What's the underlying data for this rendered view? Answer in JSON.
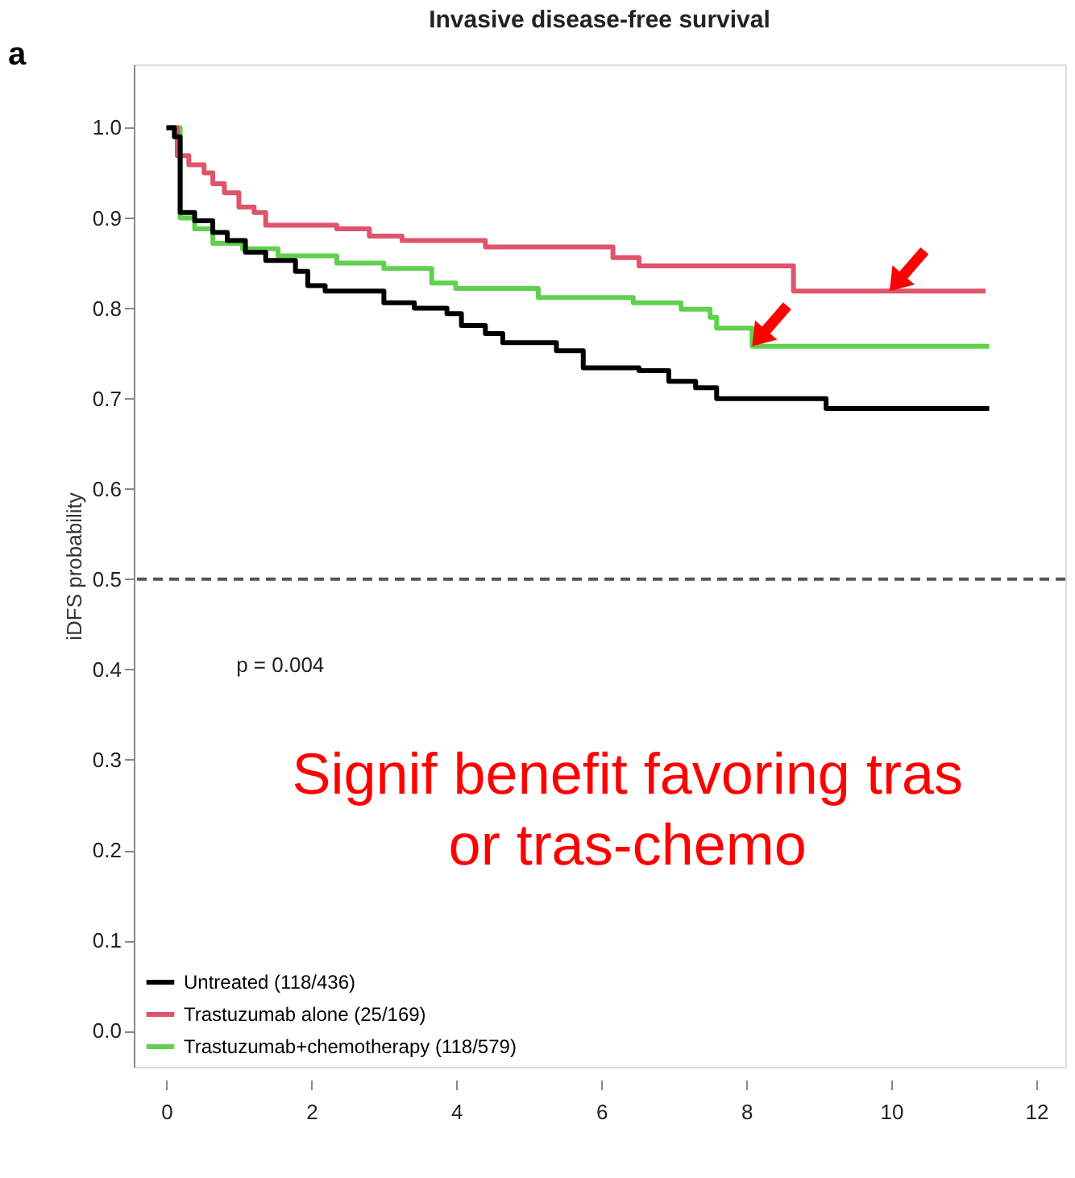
{
  "chart_data": {
    "type": "step",
    "title": "Invasive disease-free survival",
    "ylabel": "iDFS probability",
    "xlim": [
      -0.45,
      12.4
    ],
    "xticks": [
      0,
      2,
      4,
      6,
      8,
      10,
      12
    ],
    "ylim": [
      -0.04,
      1.07
    ],
    "yticks": [
      {
        "value": 0,
        "label": "0.0"
      },
      0.1,
      0.2,
      0.3,
      0.4,
      0.5,
      0.6,
      0.7,
      0.8,
      0.9,
      {
        "value": 1,
        "label": "1.0"
      }
    ],
    "grid": false,
    "legend": "bottom left",
    "line_style": "solid",
    "marker": "none",
    "ref_lines": [
      {
        "axis": "y",
        "value": 0.5,
        "color": "#555555",
        "line_style": "dashed"
      }
    ],
    "annotations": [
      "a",
      "p = 0.004",
      "Signif benefit favoring tras\nor tras-chemo"
    ],
    "series": [
      {
        "name": "Untreated (118/436)",
        "color": "#000000",
        "x": [
          0,
          0.11,
          0.19,
          0.39,
          0.64,
          0.84,
          1.09,
          1.37,
          1.78,
          1.95,
          2.19,
          3.0,
          3.42,
          3.87,
          4.07,
          4.4,
          4.64,
          5.38,
          5.75,
          6.52,
          6.93,
          7.3,
          7.59,
          9.1,
          11.35
        ],
        "values": [
          1.0,
          0.99,
          0.906,
          0.897,
          0.884,
          0.875,
          0.862,
          0.853,
          0.841,
          0.825,
          0.819,
          0.806,
          0.8,
          0.794,
          0.781,
          0.772,
          0.762,
          0.753,
          0.734,
          0.731,
          0.719,
          0.712,
          0.7,
          0.689,
          0.689
        ]
      },
      {
        "name": "Trastuzumab alone (25/169)",
        "color": "#df536b",
        "x": [
          0.05,
          0.15,
          0.31,
          0.52,
          0.64,
          0.8,
          1.0,
          1.21,
          1.37,
          2.35,
          2.8,
          3.25,
          4.4,
          6.16,
          6.52,
          8.65,
          11.3
        ],
        "values": [
          1.0,
          0.969,
          0.959,
          0.95,
          0.938,
          0.928,
          0.912,
          0.906,
          0.892,
          0.888,
          0.88,
          0.875,
          0.868,
          0.856,
          0.847,
          0.819,
          0.819
        ]
      },
      {
        "name": "Trastuzumab+chemotherapy (118/579)",
        "color": "#61d04f",
        "x": [
          0,
          0.19,
          0.39,
          0.64,
          1.05,
          1.54,
          2.35,
          3.0,
          3.66,
          3.99,
          5.13,
          6.44,
          7.1,
          7.5,
          7.59,
          8.08,
          11.35
        ],
        "values": [
          1.0,
          0.9,
          0.888,
          0.872,
          0.866,
          0.858,
          0.85,
          0.844,
          0.828,
          0.822,
          0.812,
          0.806,
          0.799,
          0.79,
          0.778,
          0.758,
          0.758
        ]
      }
    ]
  }
}
